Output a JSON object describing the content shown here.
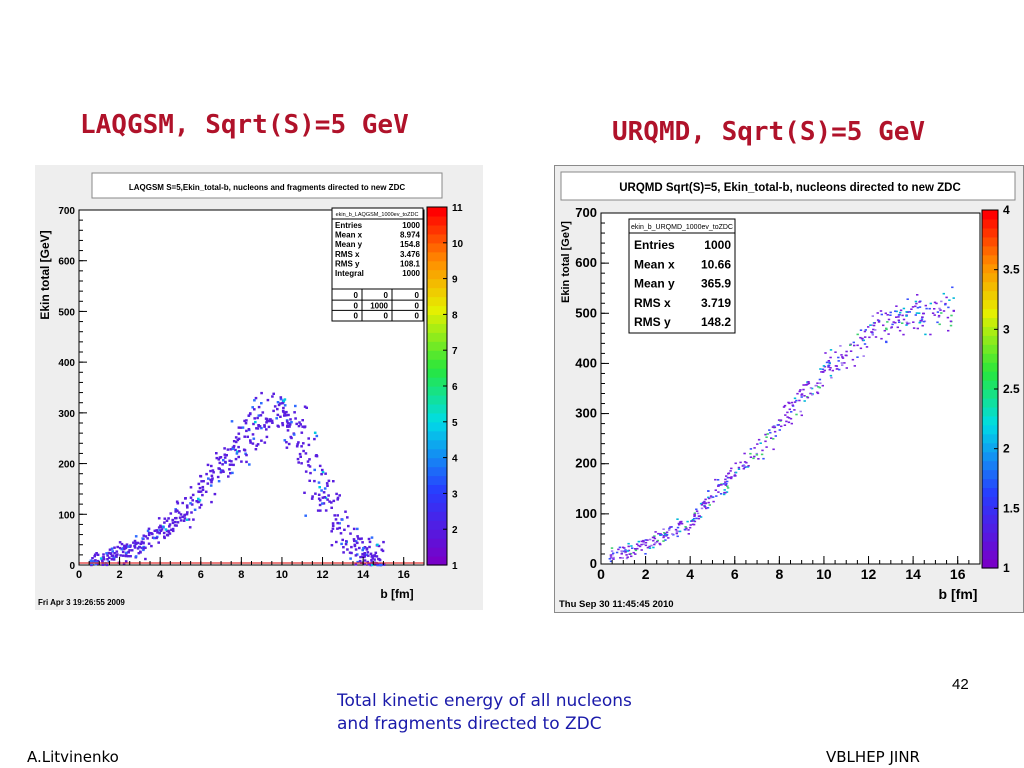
{
  "slide": {
    "title_left": "LAQGSM, Sqrt(S)=5 GeV",
    "title_right": "URQMD, Sqrt(S)=5 GeV",
    "caption_line1": "Total kinetic energy of all nucleons",
    "caption_line2": "and fragments directed to ZDC",
    "page_number": "42",
    "author": "A.Litvinenko",
    "organization": "VBLHEP JINR",
    "colors": {
      "title": "#b0122a",
      "caption": "#1a1aaa",
      "markers_left": "#5a1ee0"
    }
  },
  "chart_data": [
    {
      "type": "heatmap",
      "title": "LAQGSM S=5,Ekin_total-b, nucleons and fragments directed to new ZDC",
      "xlabel": "b [fm]",
      "ylabel": "Ekin total [GeV]",
      "xlim": [
        0,
        17
      ],
      "ylim": [
        0,
        700
      ],
      "x_ticks": [
        "0",
        "2",
        "4",
        "6",
        "8",
        "10",
        "12",
        "14",
        "16"
      ],
      "y_ticks": [
        "0",
        "100",
        "200",
        "300",
        "400",
        "500",
        "600",
        "700"
      ],
      "z_ticks": [
        "1",
        "2",
        "3",
        "4",
        "5",
        "6",
        "7",
        "8",
        "9",
        "10",
        "11"
      ],
      "zlim": [
        1,
        11
      ],
      "timestamp": "Fri Apr  3 19:26:55 2009",
      "stats": {
        "name": "ekin_b_LAQGSM_1000ev_toZDC",
        "rows": [
          {
            "label": "Entries",
            "value": "1000"
          },
          {
            "label": "Mean x",
            "value": "8.974"
          },
          {
            "label": "Mean y",
            "value": "154.8"
          },
          {
            "label": "RMS x",
            "value": "3.476"
          },
          {
            "label": "RMS y",
            "value": "108.1"
          },
          {
            "label": "Integral",
            "value": "1000"
          }
        ],
        "grid": [
          [
            "0",
            "0",
            "0"
          ],
          [
            "0",
            "1000",
            "0"
          ],
          [
            "0",
            "0",
            "0"
          ]
        ]
      },
      "entries": 1000,
      "density_profile": [
        {
          "x": 0.5,
          "y": 6
        },
        {
          "x": 1,
          "y": 12
        },
        {
          "x": 2,
          "y": 25
        },
        {
          "x": 3,
          "y": 40
        },
        {
          "x": 4,
          "y": 70
        },
        {
          "x": 5,
          "y": 100
        },
        {
          "x": 6,
          "y": 145
        },
        {
          "x": 7,
          "y": 200
        },
        {
          "x": 8,
          "y": 250
        },
        {
          "x": 9,
          "y": 295
        },
        {
          "x": 10,
          "y": 300
        },
        {
          "x": 11,
          "y": 240
        },
        {
          "x": 12,
          "y": 160
        },
        {
          "x": 13,
          "y": 70
        },
        {
          "x": 14,
          "y": 20
        },
        {
          "x": 15,
          "y": 3
        }
      ]
    },
    {
      "type": "heatmap",
      "title": "URQMD Sqrt(S)=5, Ekin_total-b, nucleons directed to new ZDC",
      "xlabel": "b [fm]",
      "ylabel": "Ekin total [GeV]",
      "xlim": [
        0,
        17
      ],
      "ylim": [
        0,
        700
      ],
      "x_ticks": [
        "0",
        "2",
        "4",
        "6",
        "8",
        "10",
        "12",
        "14",
        "16"
      ],
      "y_ticks": [
        "0",
        "100",
        "200",
        "300",
        "400",
        "500",
        "600",
        "700"
      ],
      "z_ticks": [
        "1",
        "1.5",
        "2",
        "2.5",
        "3",
        "3.5",
        "4"
      ],
      "zlim": [
        1,
        4
      ],
      "timestamp": "Thu Sep 30 11:45:45 2010",
      "stats": {
        "name": "ekin_b_URQMD_1000ev_toZDC",
        "rows": [
          {
            "label": "Entries",
            "value": "1000"
          },
          {
            "label": "Mean x",
            "value": "10.66"
          },
          {
            "label": "Mean y",
            "value": "365.9"
          },
          {
            "label": "RMS x",
            "value": "3.719"
          },
          {
            "label": "RMS y",
            "value": "148.2"
          }
        ]
      },
      "entries": 1000,
      "density_profile": [
        {
          "x": 0.3,
          "y": 20
        },
        {
          "x": 1,
          "y": 25
        },
        {
          "x": 2,
          "y": 40
        },
        {
          "x": 3,
          "y": 65
        },
        {
          "x": 4,
          "y": 85
        },
        {
          "x": 5,
          "y": 140
        },
        {
          "x": 6,
          "y": 185
        },
        {
          "x": 7,
          "y": 230
        },
        {
          "x": 8,
          "y": 280
        },
        {
          "x": 9,
          "y": 340
        },
        {
          "x": 10,
          "y": 385
        },
        {
          "x": 11,
          "y": 420
        },
        {
          "x": 12,
          "y": 460
        },
        {
          "x": 13,
          "y": 480
        },
        {
          "x": 14,
          "y": 495
        },
        {
          "x": 15,
          "y": 505
        },
        {
          "x": 15.8,
          "y": 510
        }
      ]
    }
  ]
}
